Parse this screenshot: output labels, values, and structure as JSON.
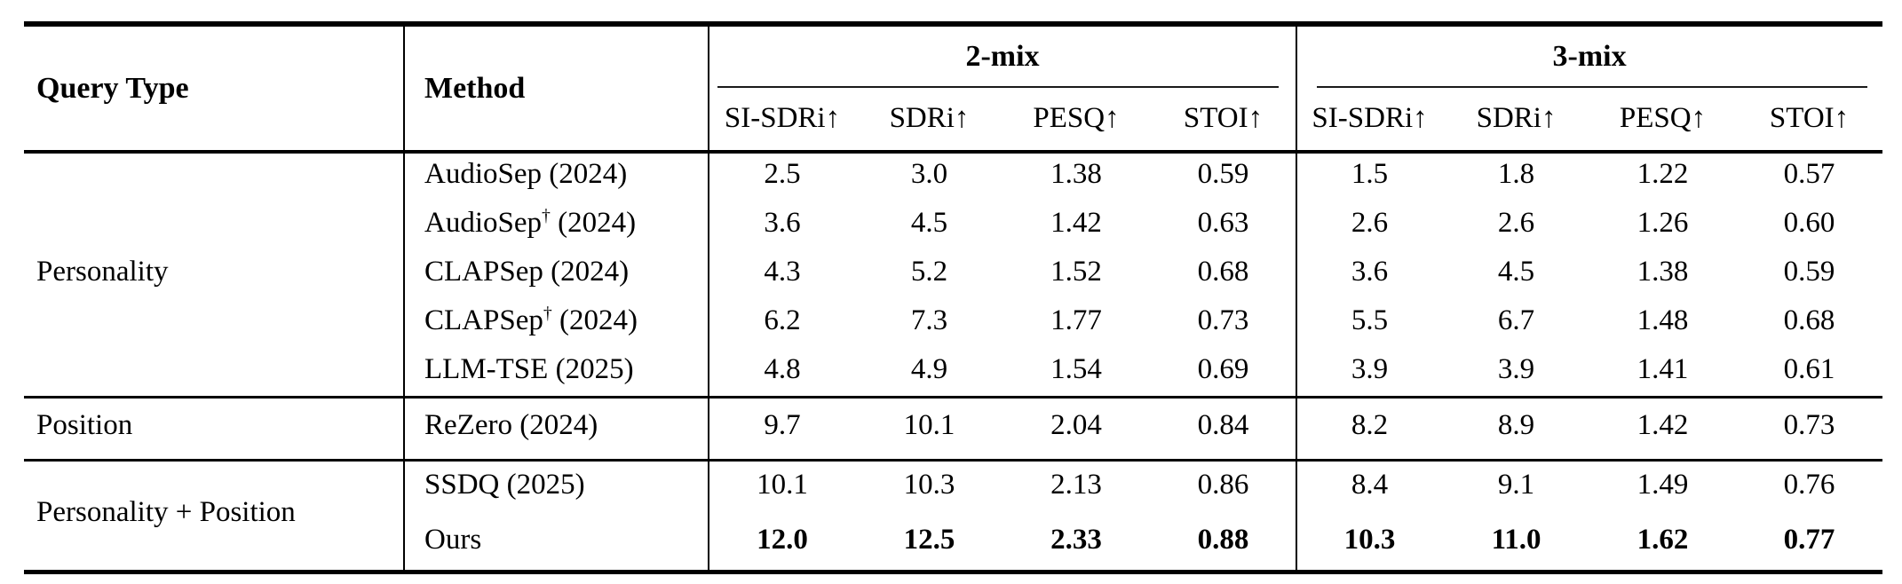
{
  "table": {
    "col1_header": "Query Type",
    "col2_header": "Method",
    "groups": [
      {
        "label": "2-mix"
      },
      {
        "label": "3-mix"
      }
    ],
    "metric_headers": [
      "SI-SDRi↑",
      "SDRi↑",
      "PESQ↑",
      "STOI↑"
    ],
    "sections": [
      {
        "query_type": "Personality",
        "rows": [
          {
            "name": "AudioSep",
            "sup": "",
            "year": "(2024)",
            "bold": false,
            "values": [
              "2.5",
              "3.0",
              "1.38",
              "0.59",
              "1.5",
              "1.8",
              "1.22",
              "0.57"
            ]
          },
          {
            "name": "AudioSep",
            "sup": "†",
            "year": "(2024)",
            "bold": false,
            "values": [
              "3.6",
              "4.5",
              "1.42",
              "0.63",
              "2.6",
              "2.6",
              "1.26",
              "0.60"
            ]
          },
          {
            "name": "CLAPSep",
            "sup": "",
            "year": "(2024)",
            "bold": false,
            "values": [
              "4.3",
              "5.2",
              "1.52",
              "0.68",
              "3.6",
              "4.5",
              "1.38",
              "0.59"
            ]
          },
          {
            "name": "CLAPSep",
            "sup": "†",
            "year": "(2024)",
            "bold": false,
            "values": [
              "6.2",
              "7.3",
              "1.77",
              "0.73",
              "5.5",
              "6.7",
              "1.48",
              "0.68"
            ]
          },
          {
            "name": "LLM-TSE",
            "sup": "",
            "year": "(2025)",
            "bold": false,
            "values": [
              "4.8",
              "4.9",
              "1.54",
              "0.69",
              "3.9",
              "3.9",
              "1.41",
              "0.61"
            ]
          }
        ]
      },
      {
        "query_type": "Position",
        "rows": [
          {
            "name": "ReZero",
            "sup": "",
            "year": "(2024)",
            "bold": false,
            "values": [
              "9.7",
              "10.1",
              "2.04",
              "0.84",
              "8.2",
              "8.9",
              "1.42",
              "0.73"
            ]
          }
        ]
      },
      {
        "query_type": "Personality + Position",
        "rows": [
          {
            "name": "SSDQ",
            "sup": "",
            "year": "(2025)",
            "bold": false,
            "values": [
              "10.1",
              "10.3",
              "2.13",
              "0.86",
              "8.4",
              "9.1",
              "1.49",
              "0.76"
            ]
          },
          {
            "name": "Ours",
            "sup": "",
            "year": "",
            "bold": true,
            "values": [
              "12.0",
              "12.5",
              "2.33",
              "0.88",
              "10.3",
              "11.0",
              "1.62",
              "0.77"
            ]
          }
        ]
      }
    ]
  }
}
